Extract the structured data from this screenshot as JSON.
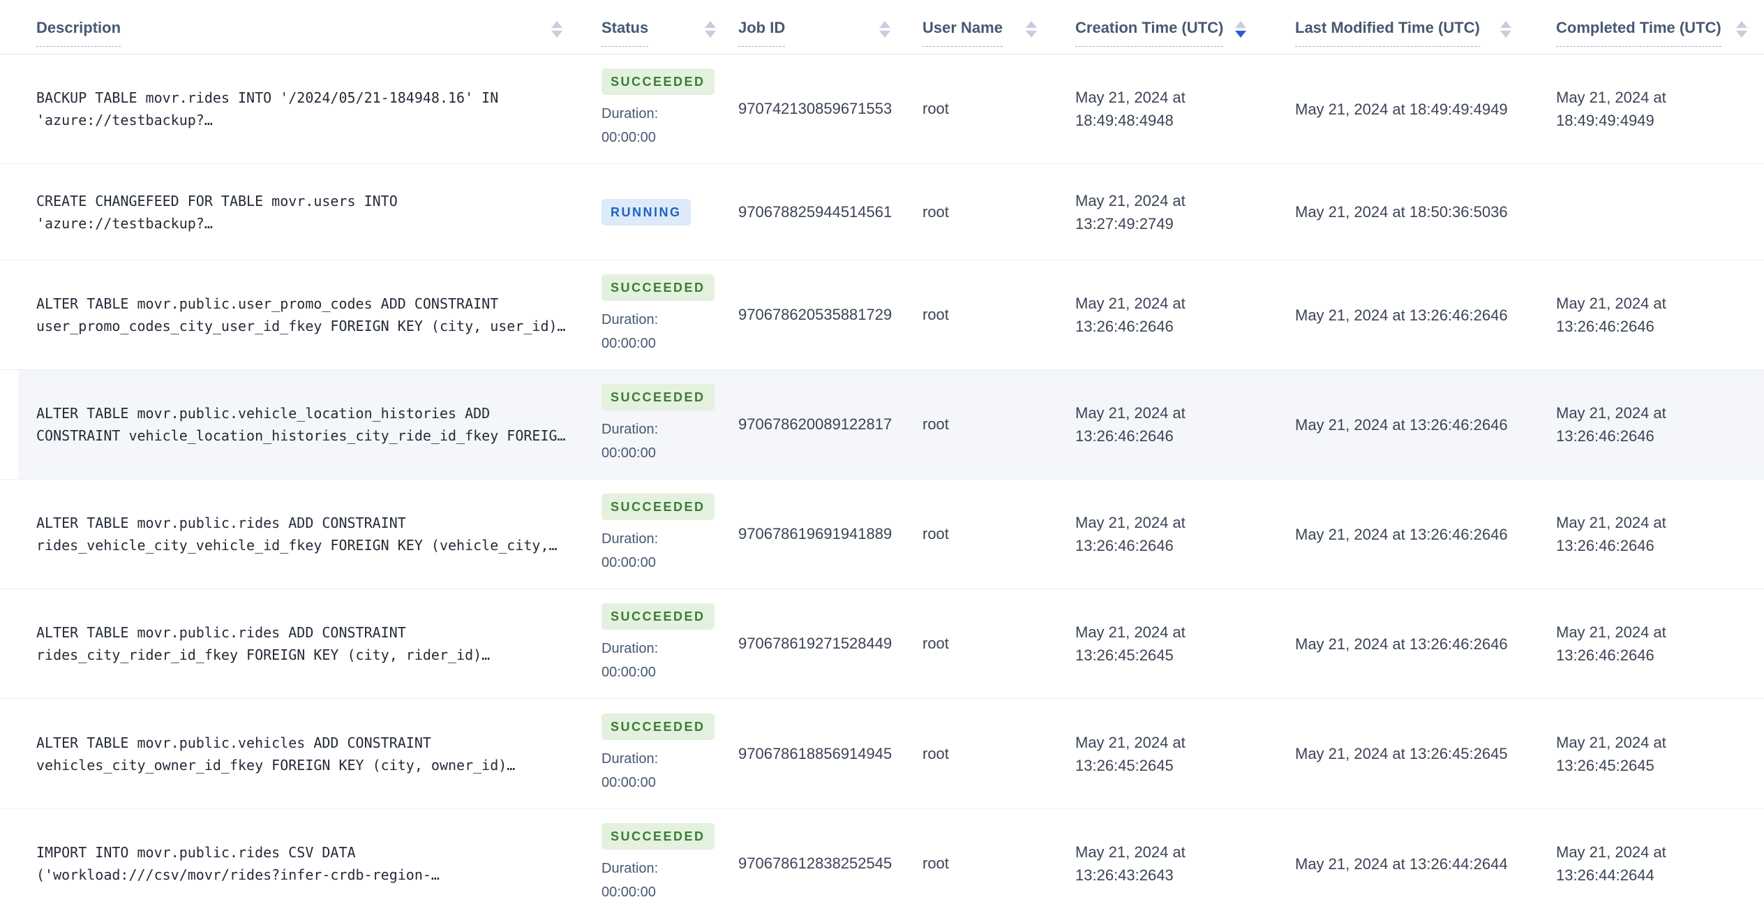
{
  "table": {
    "columns": [
      {
        "label": "Description",
        "sort": "none"
      },
      {
        "label": "Status",
        "sort": "none"
      },
      {
        "label": "Job ID",
        "sort": "none"
      },
      {
        "label": "User Name",
        "sort": "none"
      },
      {
        "label": "Creation Time (UTC)",
        "sort": "desc"
      },
      {
        "label": "Last Modified Time (UTC)",
        "sort": "none"
      },
      {
        "label": "Completed Time (UTC)",
        "sort": "none"
      }
    ],
    "duration_label": "Duration:",
    "rows": [
      {
        "description": "BACKUP TABLE movr.rides INTO '/2024/05/21-184948.16' IN\n'azure://testbackup?…",
        "status": "SUCCEEDED",
        "status_type": "succeeded",
        "duration": "00:00:00",
        "job_id": "970742130859671553",
        "user": "root",
        "created": "May 21, 2024 at\n18:49:48:4948",
        "modified": "May 21, 2024 at 18:49:49:4949",
        "completed": "May 21, 2024 at\n18:49:49:4949",
        "highlighted": false,
        "row_height": "h157"
      },
      {
        "description": "CREATE CHANGEFEED FOR TABLE movr.users INTO\n'azure://testbackup?…",
        "status": "RUNNING",
        "status_type": "running",
        "duration": "",
        "job_id": "970678825944514561",
        "user": "root",
        "created": "May 21, 2024 at\n13:27:49:2749",
        "modified": "May 21, 2024 at 18:50:36:5036",
        "completed": "",
        "highlighted": false,
        "row_height": "h138"
      },
      {
        "description": "ALTER TABLE movr.public.user_promo_codes ADD CONSTRAINT\nuser_promo_codes_city_user_id_fkey FOREIGN KEY (city, user_id)…",
        "status": "SUCCEEDED",
        "status_type": "succeeded",
        "duration": "00:00:00",
        "job_id": "970678620535881729",
        "user": "root",
        "created": "May 21, 2024 at\n13:26:46:2646",
        "modified": "May 21, 2024 at 13:26:46:2646",
        "completed": "May 21, 2024 at\n13:26:46:2646",
        "highlighted": false,
        "row_height": "h157"
      },
      {
        "description": "ALTER TABLE movr.public.vehicle_location_histories ADD\nCONSTRAINT vehicle_location_histories_city_ride_id_fkey FOREIG…",
        "status": "SUCCEEDED",
        "status_type": "succeeded",
        "duration": "00:00:00",
        "job_id": "970678620089122817",
        "user": "root",
        "created": "May 21, 2024 at\n13:26:46:2646",
        "modified": "May 21, 2024 at 13:26:46:2646",
        "completed": "May 21, 2024 at\n13:26:46:2646",
        "highlighted": true,
        "row_height": "h157"
      },
      {
        "description": "ALTER TABLE movr.public.rides ADD CONSTRAINT\nrides_vehicle_city_vehicle_id_fkey FOREIGN KEY (vehicle_city,…",
        "status": "SUCCEEDED",
        "status_type": "succeeded",
        "duration": "00:00:00",
        "job_id": "970678619691941889",
        "user": "root",
        "created": "May 21, 2024 at\n13:26:46:2646",
        "modified": "May 21, 2024 at 13:26:46:2646",
        "completed": "May 21, 2024 at\n13:26:46:2646",
        "highlighted": false,
        "row_height": "h157"
      },
      {
        "description": "ALTER TABLE movr.public.rides ADD CONSTRAINT\nrides_city_rider_id_fkey FOREIGN KEY (city, rider_id)…",
        "status": "SUCCEEDED",
        "status_type": "succeeded",
        "duration": "00:00:00",
        "job_id": "970678619271528449",
        "user": "root",
        "created": "May 21, 2024 at\n13:26:45:2645",
        "modified": "May 21, 2024 at 13:26:46:2646",
        "completed": "May 21, 2024 at\n13:26:46:2646",
        "highlighted": false,
        "row_height": "h157"
      },
      {
        "description": "ALTER TABLE movr.public.vehicles ADD CONSTRAINT\nvehicles_city_owner_id_fkey FOREIGN KEY (city, owner_id)…",
        "status": "SUCCEEDED",
        "status_type": "succeeded",
        "duration": "00:00:00",
        "job_id": "970678618856914945",
        "user": "root",
        "created": "May 21, 2024 at\n13:26:45:2645",
        "modified": "May 21, 2024 at 13:26:45:2645",
        "completed": "May 21, 2024 at\n13:26:45:2645",
        "highlighted": false,
        "row_height": "h158"
      },
      {
        "description": "IMPORT INTO movr.public.rides CSV DATA\n('workload:///csv/movr/rides?infer-crdb-region-…",
        "status": "SUCCEEDED",
        "status_type": "succeeded",
        "duration": "00:00:00",
        "job_id": "970678612838252545",
        "user": "root",
        "created": "May 21, 2024 at\n13:26:43:2643",
        "modified": "May 21, 2024 at 13:26:44:2644",
        "completed": "May 21, 2024 at\n13:26:44:2644",
        "highlighted": false,
        "row_height": "h157"
      }
    ]
  },
  "colors": {
    "status_succeeded_bg": "#e4f1df",
    "status_succeeded_fg": "#3a7d33",
    "status_running_bg": "#dceafa",
    "status_running_fg": "#2161be",
    "sort_active": "#2a5bd7",
    "sort_inactive": "#c6cddd"
  }
}
